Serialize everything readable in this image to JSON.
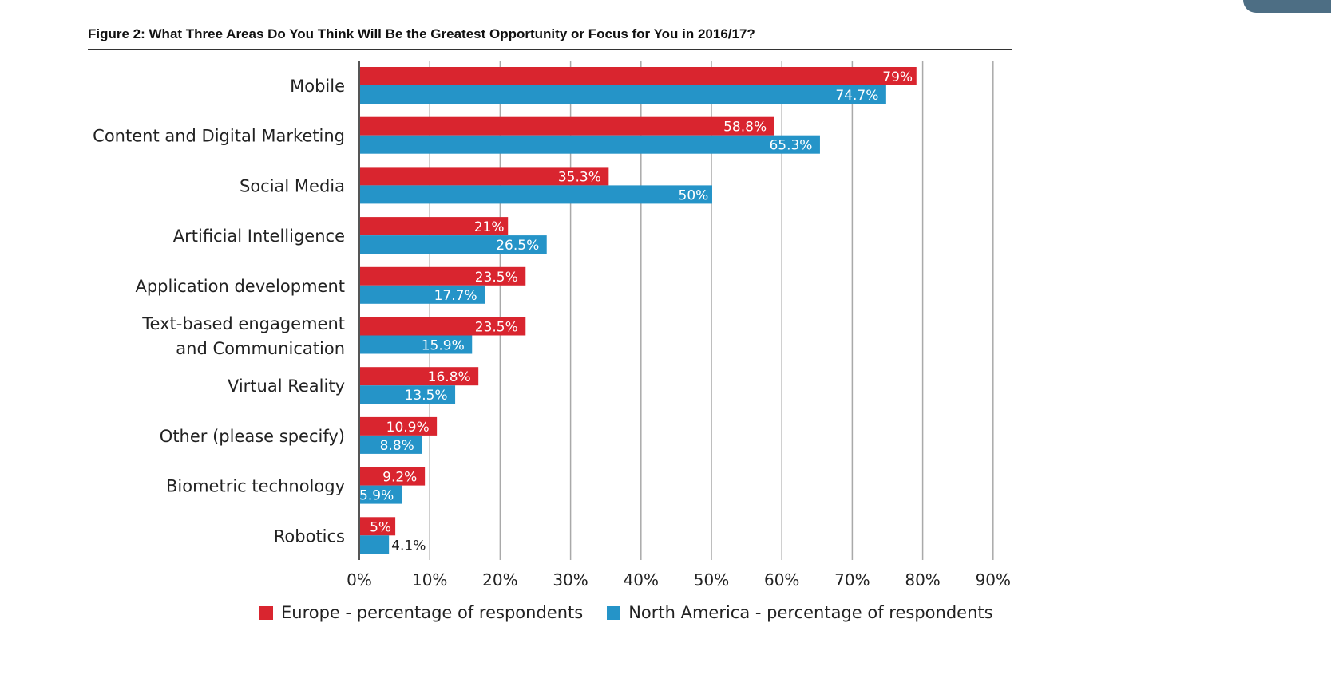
{
  "title": "Figure 2: What Three Areas Do You Think Will Be the Greatest Opportunity or Focus for You in 2016/17?",
  "colors": {
    "europe": "#d9252f",
    "north_america": "#2594c8",
    "grid": "#a9a9a9",
    "axis": "#555555"
  },
  "chart_data": {
    "type": "bar",
    "orientation": "horizontal",
    "title": "Figure 2: What Three Areas Do You Think Will Be the Greatest Opportunity or Focus for You in 2016/17?",
    "categories": [
      "Mobile",
      "Content and Digital Marketing",
      "Social Media",
      "Artificial Intelligence",
      "Application development",
      "Text-based engagement and Communication",
      "Virtual Reality",
      "Other (please specify)",
      "Biometric technology",
      "Robotics"
    ],
    "category_lines": [
      [
        "Mobile"
      ],
      [
        "Content and Digital Marketing"
      ],
      [
        "Social Media"
      ],
      [
        "Artificial Intelligence"
      ],
      [
        "Application development"
      ],
      [
        "Text-based engagement",
        "and Communication"
      ],
      [
        "Virtual Reality"
      ],
      [
        "Other (please specify)"
      ],
      [
        "Biometric technology"
      ],
      [
        "Robotics"
      ]
    ],
    "series": [
      {
        "name": "Europe - percentage of respondents",
        "values": [
          79,
          58.8,
          35.3,
          21,
          23.5,
          23.5,
          16.8,
          10.9,
          9.2,
          5
        ],
        "labels": [
          "79%",
          "58.8%",
          "35.3%",
          "21%",
          "23.5%",
          "23.5%",
          "16.8%",
          "10.9%",
          "9.2%",
          "5%"
        ]
      },
      {
        "name": "North America - percentage of respondents",
        "values": [
          74.7,
          65.3,
          50,
          26.5,
          17.7,
          15.9,
          13.5,
          8.8,
          5.9,
          4.1
        ],
        "labels": [
          "74.7%",
          "65.3%",
          "50%",
          "26.5%",
          "17.7%",
          "15.9%",
          "13.5%",
          "8.8%",
          "5.9%",
          "4.1%"
        ]
      }
    ],
    "xlim": [
      0,
      90
    ],
    "xticks": [
      "0%",
      "10%",
      "20%",
      "30%",
      "40%",
      "50%",
      "60%",
      "70%",
      "80%",
      "90%"
    ],
    "grid": true,
    "legend": "bottom"
  }
}
